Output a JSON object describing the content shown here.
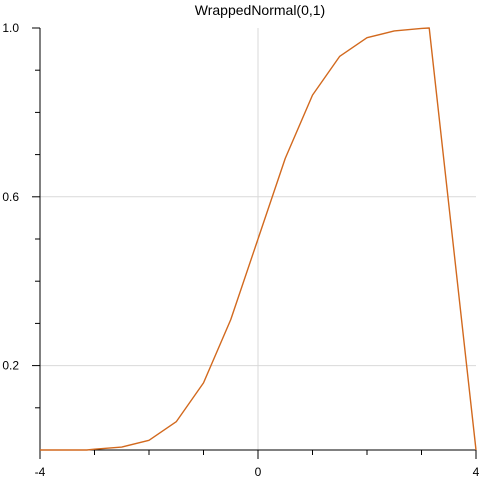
{
  "chart_data": {
    "type": "line",
    "title": "WrappedNormal(0,1)",
    "xlabel": "",
    "ylabel": "",
    "xlim": [
      -4,
      4
    ],
    "ylim": [
      0,
      1
    ],
    "x_ticks_major": [
      -4,
      0,
      4
    ],
    "x_tick_labels": [
      "-4",
      "0",
      "4"
    ],
    "x_ticks_minor": [
      -3,
      -2,
      -1,
      1,
      2,
      3
    ],
    "y_ticks_major": [
      0.2,
      0.6,
      1.0
    ],
    "y_tick_labels": [
      "0.2",
      "0.6",
      "1.0"
    ],
    "y_ticks_minor": [
      0.1,
      0.3,
      0.4,
      0.5,
      0.7,
      0.8,
      0.9
    ],
    "grid_x": [
      0
    ],
    "grid_y": [
      0.2,
      0.6
    ],
    "line_color": "#d2691e",
    "series": [
      {
        "x": [
          -4.0,
          -3.1416,
          -3.0,
          -2.5,
          -2.0,
          -1.5,
          -1.0,
          -0.5,
          0.0,
          0.5,
          1.0,
          1.5,
          2.0,
          2.5,
          3.0,
          3.1416,
          4.0
        ],
        "y": [
          0.0,
          0.0,
          0.002,
          0.007,
          0.023,
          0.067,
          0.159,
          0.309,
          0.5,
          0.691,
          0.841,
          0.933,
          0.977,
          0.993,
          0.999,
          1.0,
          0.0
        ]
      }
    ]
  }
}
